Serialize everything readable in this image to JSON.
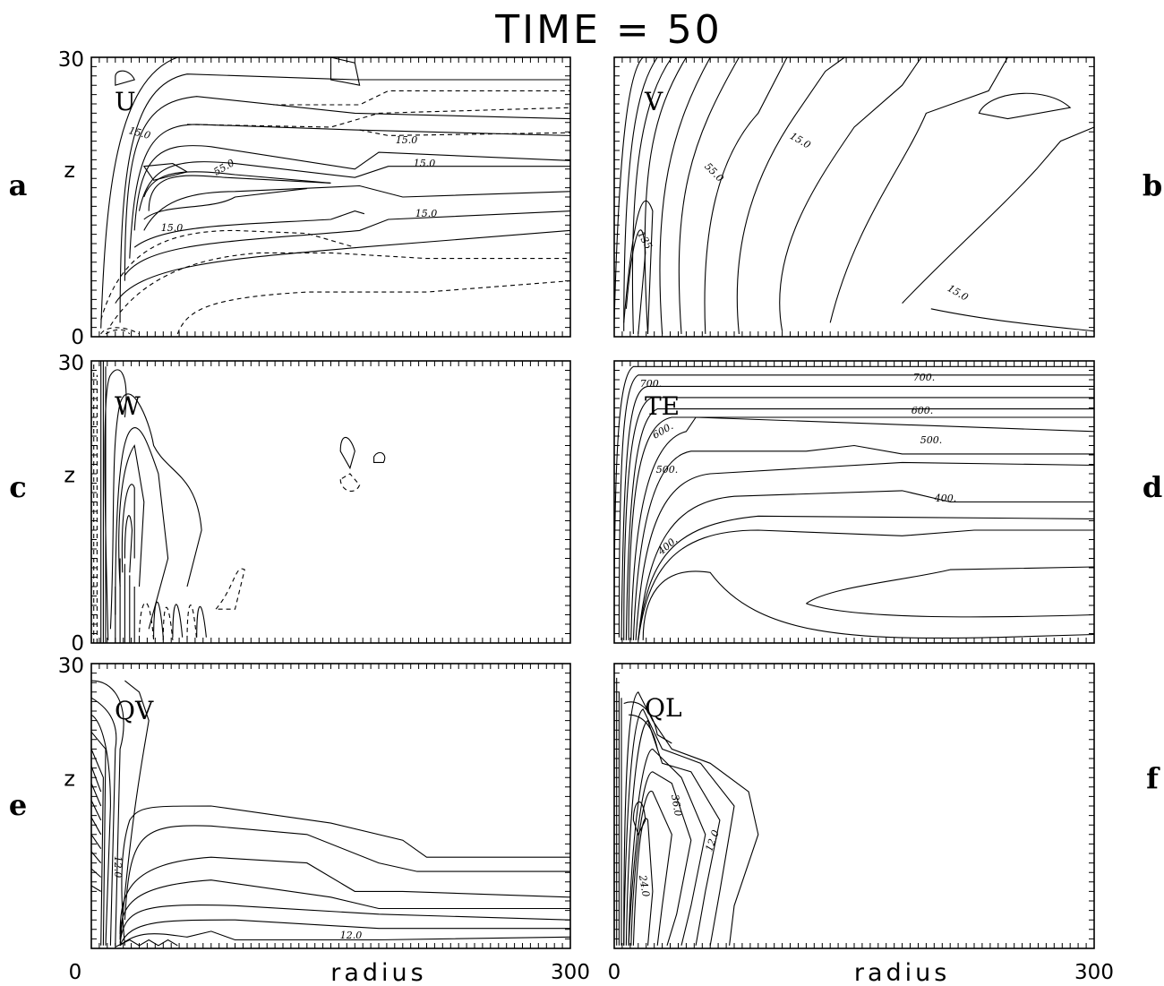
{
  "title": "TIME  =   50",
  "chart_data": [
    {
      "type": "contour",
      "panel_label": "a",
      "variable": "U",
      "ylabel": "z",
      "xlabel": "",
      "x_ticks": [],
      "y_ticks": [
        "0",
        "30"
      ],
      "xlim": [
        0,
        300
      ],
      "ylim": [
        0,
        30
      ],
      "contour_labels": [
        "15.0",
        "15.0",
        "55.0",
        "15.0",
        "15.0",
        "15.0"
      ]
    },
    {
      "type": "contour",
      "panel_label": "b",
      "variable": "V",
      "ylabel": "",
      "xlabel": "",
      "x_ticks": [],
      "y_ticks": [],
      "xlim": [
        0,
        300
      ],
      "ylim": [
        0,
        30
      ],
      "contour_labels": [
        "15.0",
        "55.0",
        "135",
        "15.0"
      ]
    },
    {
      "type": "contour",
      "panel_label": "c",
      "variable": "W",
      "ylabel": "z",
      "xlabel": "",
      "x_ticks": [],
      "y_ticks": [
        "0",
        "30"
      ],
      "xlim": [
        0,
        300
      ],
      "ylim": [
        0,
        30
      ],
      "contour_labels": []
    },
    {
      "type": "contour",
      "panel_label": "d",
      "variable": "TE",
      "ylabel": "",
      "xlabel": "",
      "x_ticks": [],
      "y_ticks": [],
      "xlim": [
        0,
        300
      ],
      "ylim": [
        0,
        30
      ],
      "contour_labels": [
        "700.",
        "700.",
        "600.",
        "600.",
        "500.",
        "500.",
        "400.",
        "400."
      ]
    },
    {
      "type": "contour",
      "panel_label": "e",
      "variable": "QV",
      "ylabel": "z",
      "xlabel": "radius",
      "x_ticks": [
        "0",
        "300"
      ],
      "y_ticks": [
        "30"
      ],
      "xlim": [
        0,
        300
      ],
      "ylim": [
        0,
        30
      ],
      "contour_labels": [
        "12.0",
        "12.0"
      ]
    },
    {
      "type": "contour",
      "panel_label": "f",
      "variable": "QL",
      "ylabel": "",
      "xlabel": "radius",
      "x_ticks": [
        "0",
        "300"
      ],
      "y_ticks": [],
      "xlim": [
        0,
        300
      ],
      "ylim": [
        0,
        30
      ],
      "contour_labels": [
        "36.0",
        "12.0",
        "24.0"
      ]
    }
  ]
}
